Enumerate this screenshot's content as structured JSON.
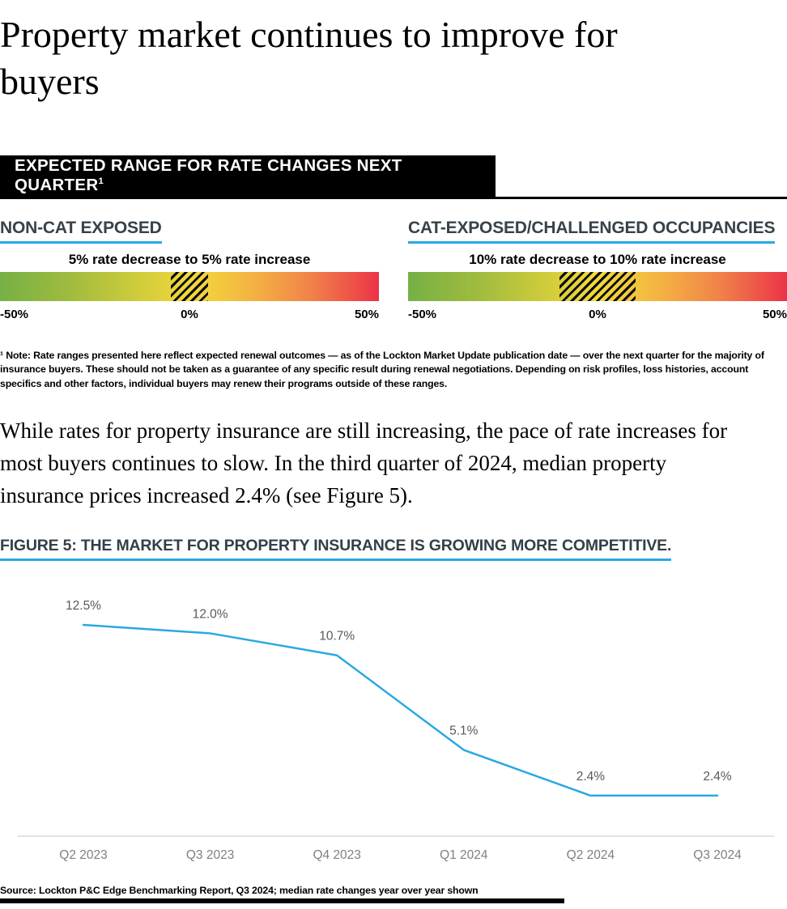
{
  "page": {
    "title": "Property market continues to improve for buyers"
  },
  "banner": {
    "label": "EXPECTED RANGE FOR RATE CHANGES NEXT QUARTER",
    "superscript": "1"
  },
  "rate_ranges": {
    "scale_labels": [
      "-50%",
      "0%",
      "50%"
    ],
    "panels": [
      {
        "heading": "NON-CAT EXPOSED",
        "range_label": "5% rate decrease to 5% rate increase",
        "range_low_pct": -5,
        "range_high_pct": 5,
        "hatch_left_pct": 45,
        "hatch_width_pct": 10
      },
      {
        "heading": "CAT-EXPOSED/CHALLENGED OCCUPANCIES",
        "range_label": "10% rate decrease to 10% rate increase",
        "range_low_pct": -10,
        "range_high_pct": 10,
        "hatch_left_pct": 40,
        "hatch_width_pct": 20
      }
    ]
  },
  "footnote": "¹ Note: Rate ranges presented here reflect expected renewal outcomes — as of the Lockton Market Update publication date — over the next quarter for the majority of insurance buyers. These should not be taken as a guarantee of any specific result during renewal negotiations. Depending on risk profiles, loss histories, account specifics and other factors, individual buyers may renew their programs outside of these ranges.",
  "body_paragraph": "While rates for property insurance are still increasing, the pace of rate increases for most buyers continues to slow. In the third quarter of 2024, median property insurance prices increased 2.4% (see Figure 5).",
  "figure": {
    "heading": "FIGURE 5: THE MARKET FOR PROPERTY INSURANCE IS GROWING MORE COMPETITIVE."
  },
  "chart_data": {
    "type": "line",
    "categories": [
      "Q2 2023",
      "Q3 2023",
      "Q4 2023",
      "Q1 2024",
      "Q2 2024",
      "Q3 2024"
    ],
    "values": [
      12.5,
      12.0,
      10.7,
      5.1,
      2.4,
      2.4
    ],
    "point_labels": [
      "12.5%",
      "12.0%",
      "10.7%",
      "5.1%",
      "2.4%",
      "2.4%"
    ],
    "title": "",
    "xlabel": "",
    "ylabel": "",
    "ylim": [
      0,
      14
    ],
    "baseline_value": 0,
    "grid": false,
    "legend": false,
    "line_color": "#29A9E1",
    "label_color": "#595959",
    "tick_color": "#7F7F7F",
    "axis_color": "#D9D9D9"
  },
  "source_note": "Source: Lockton P&C Edge Benchmarking Report, Q3 2024; median rate changes year over year shown",
  "colors": {
    "accent_blue": "#29A9E1",
    "heading_dark": "#333F48",
    "banner_black": "#000000",
    "gradient_green": "#76B044",
    "gradient_yellow": "#F0D93B",
    "gradient_red": "#EC3348"
  }
}
